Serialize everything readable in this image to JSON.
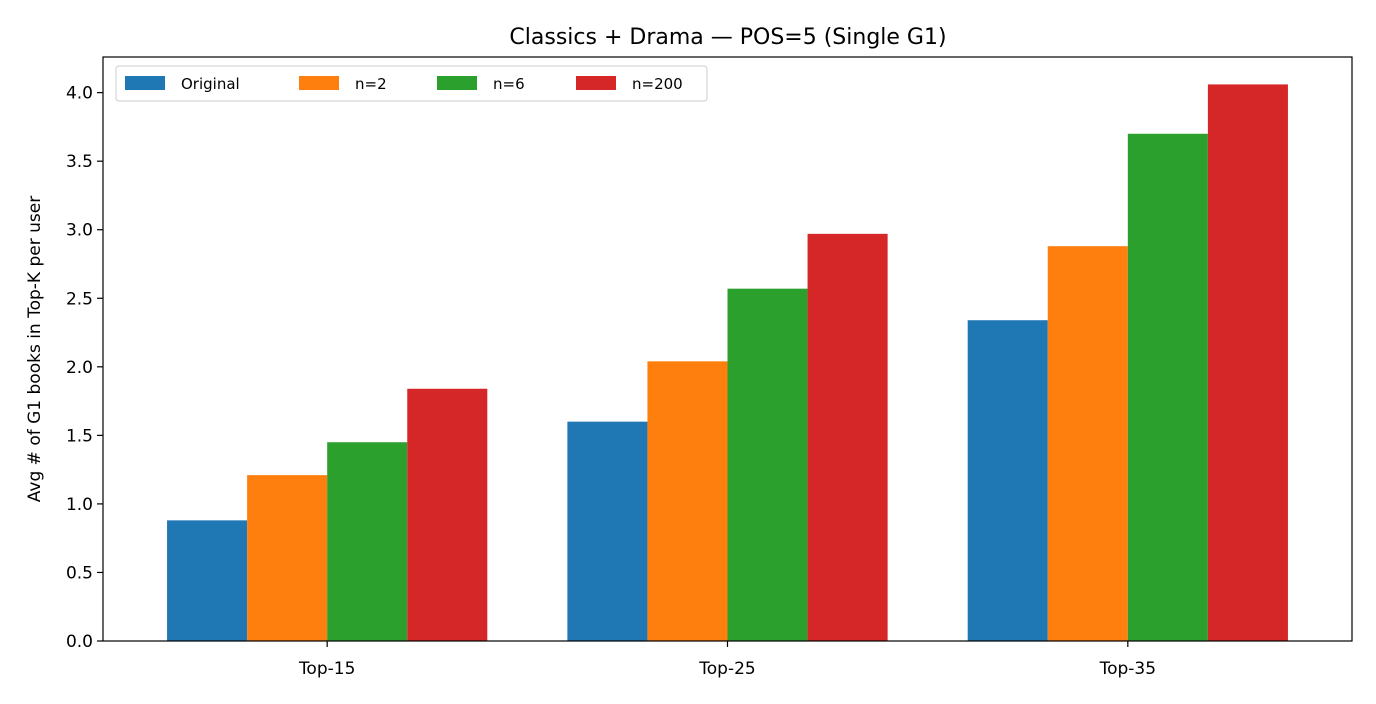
{
  "chart_data": {
    "type": "bar",
    "title": "Classics + Drama — POS=5 (Single G1)",
    "xlabel": "",
    "ylabel": "Avg # of G1 books in Top-K per user",
    "categories": [
      "Top-15",
      "Top-25",
      "Top-35"
    ],
    "series": [
      {
        "name": "Original",
        "color": "#1f77b4",
        "values": [
          0.88,
          1.6,
          2.34
        ]
      },
      {
        "name": "n=2",
        "color": "#ff7f0e",
        "values": [
          1.21,
          2.04,
          2.88
        ]
      },
      {
        "name": "n=6",
        "color": "#2ca02c",
        "values": [
          1.45,
          2.57,
          3.7
        ]
      },
      {
        "name": "n=200",
        "color": "#d62728",
        "values": [
          1.84,
          2.97,
          4.06
        ]
      }
    ],
    "ylim": [
      0,
      4.26
    ],
    "yticks": [
      0.0,
      0.5,
      1.0,
      1.5,
      2.0,
      2.5,
      3.0,
      3.5,
      4.0
    ],
    "ytick_labels": [
      "0.0",
      "0.5",
      "1.0",
      "1.5",
      "2.0",
      "2.5",
      "3.0",
      "3.5",
      "4.0"
    ],
    "legend": "top-left",
    "grid": false
  }
}
